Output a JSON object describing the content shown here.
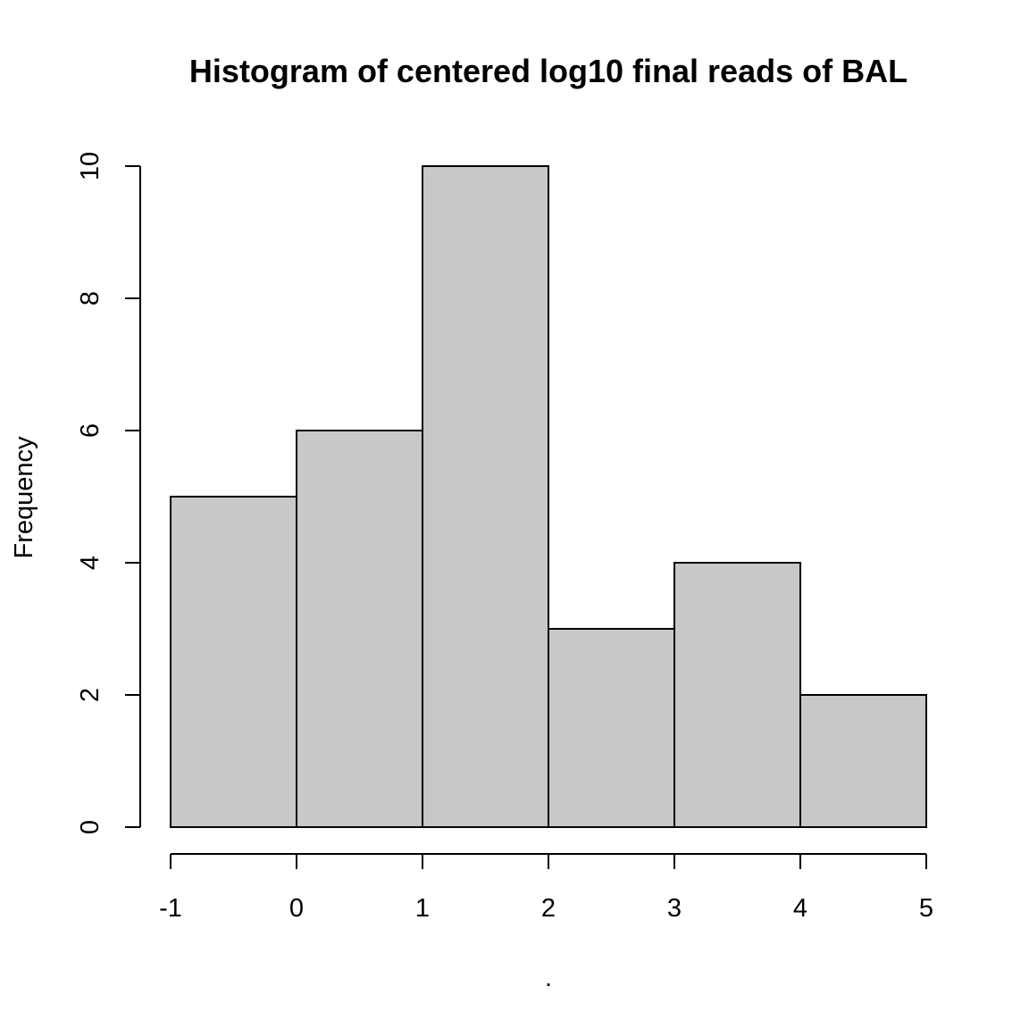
{
  "chart_data": {
    "type": "bar",
    "title": "Histogram of centered log10 final reads of BAL",
    "xlabel": ".",
    "ylabel": "Frequency",
    "bin_edges": [
      -1,
      0,
      1,
      2,
      3,
      4,
      5
    ],
    "values": [
      5,
      6,
      10,
      3,
      4,
      2
    ],
    "xlim": [
      -1,
      5
    ],
    "ylim": [
      0,
      10
    ],
    "x_ticks": [
      -1,
      0,
      1,
      2,
      3,
      4,
      5
    ],
    "y_ticks": [
      0,
      2,
      4,
      6,
      8,
      10
    ],
    "bar_color": "#c8c8c8",
    "grid": false
  }
}
